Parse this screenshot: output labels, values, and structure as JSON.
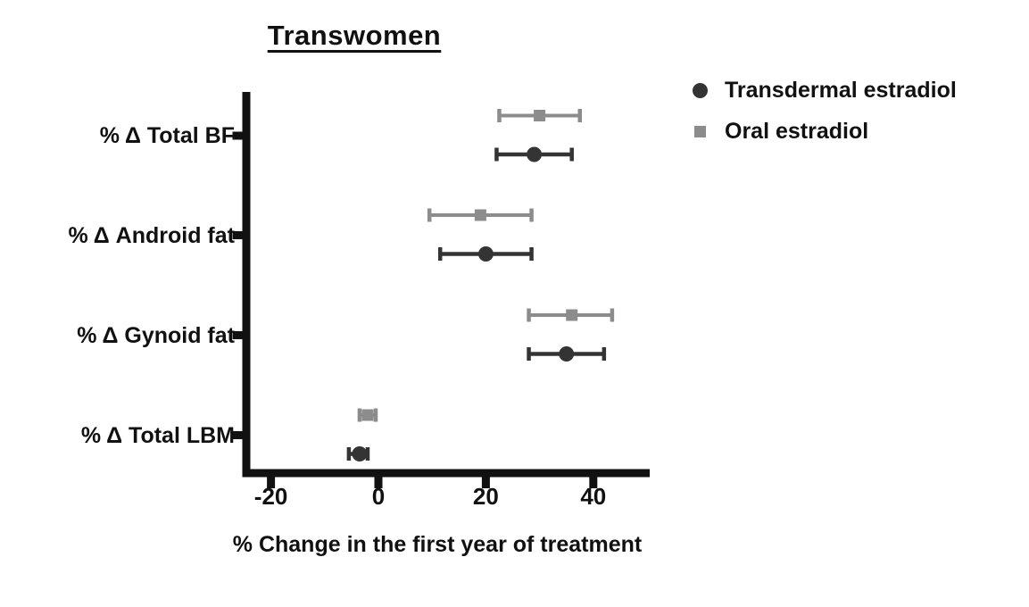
{
  "chart_data": {
    "type": "scatter",
    "subtype": "forest-plot-horizontal-error-bars",
    "title": "Transwomen",
    "xlabel": "% Change in the first year of treatment",
    "categories": [
      "% Δ Total BF",
      "% Δ Android fat",
      "% Δ Gynoid fat",
      "% Δ Total LBM"
    ],
    "x_tick_labels": [
      "-20",
      "0",
      "20",
      "40"
    ],
    "x_tick_values": [
      -20,
      0,
      20,
      40
    ],
    "xlim": [
      -25.5,
      50.5
    ],
    "grid": false,
    "legend_position": "top-right",
    "axis_color": "#111111",
    "series": [
      {
        "name": "Transdermal estradiol",
        "marker": "circle",
        "color": "#343434",
        "values": [
          29,
          20,
          35,
          -3.5
        ],
        "ci_low": [
          22,
          11.5,
          28,
          -5.5
        ],
        "ci_high": [
          36,
          28.5,
          42,
          -2
        ]
      },
      {
        "name": "Oral estradiol",
        "marker": "square",
        "color": "#8c8c8c",
        "values": [
          30,
          19,
          36,
          -2
        ],
        "ci_low": [
          22.5,
          9.5,
          28,
          -3.5
        ],
        "ci_high": [
          37.5,
          28.5,
          43.5,
          -0.5
        ]
      }
    ]
  }
}
